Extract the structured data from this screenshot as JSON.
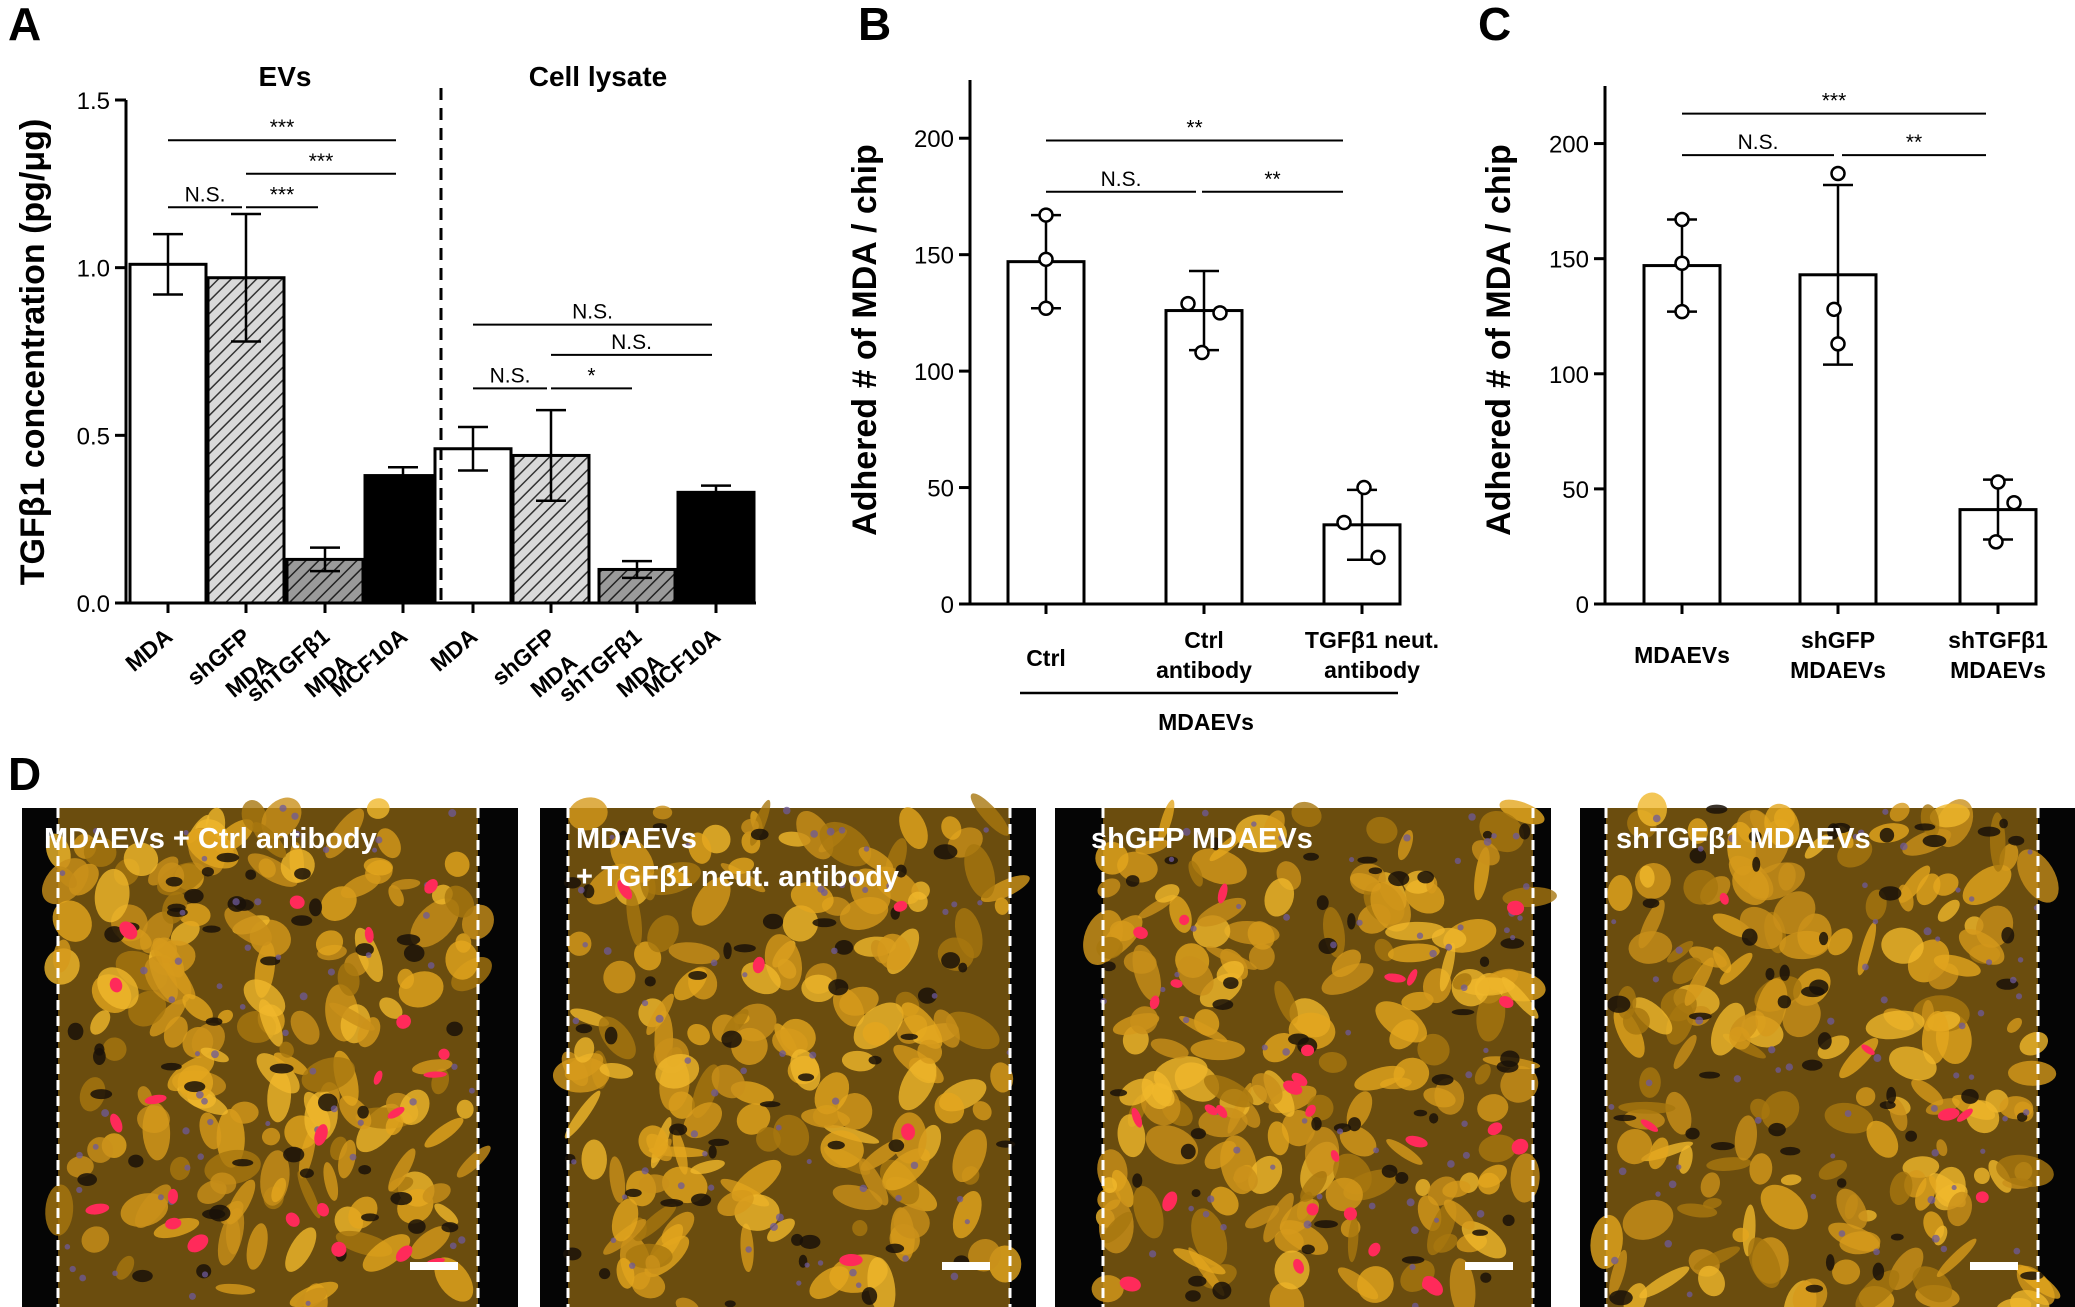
{
  "figure": {
    "panel_letters": {
      "a": "A",
      "b": "B",
      "c": "C",
      "d": "D"
    }
  },
  "chart_data": [
    {
      "panel": "A",
      "type": "bar",
      "ylabel": "TGFβ1 concentration (pg/μg)",
      "ylim": [
        0,
        1.5
      ],
      "yticks": [
        "0.0",
        "0.5",
        "1.0",
        "1.5"
      ],
      "groups": [
        "EVs",
        "Cell lysate"
      ],
      "categories": [
        {
          "lines": [
            "MDA"
          ],
          "group": "EVs"
        },
        {
          "lines": [
            "shGFP",
            "MDA"
          ],
          "group": "EVs"
        },
        {
          "lines": [
            "shTGFβ1",
            "MDA"
          ],
          "group": "EVs"
        },
        {
          "lines": [
            "MCF10A"
          ],
          "group": "EVs"
        },
        {
          "lines": [
            "MDA"
          ],
          "group": "Cell lysate"
        },
        {
          "lines": [
            "shGFP",
            "MDA"
          ],
          "group": "Cell lysate"
        },
        {
          "lines": [
            "shTGFβ1",
            "MDA"
          ],
          "group": "Cell lysate"
        },
        {
          "lines": [
            "MCF10A"
          ],
          "group": "Cell lysate"
        }
      ],
      "values": [
        1.01,
        0.97,
        0.13,
        0.38,
        0.46,
        0.44,
        0.1,
        0.33
      ],
      "error": [
        0.09,
        0.19,
        0.035,
        0.025,
        0.065,
        0.135,
        0.025,
        0.02
      ],
      "fill": [
        "white",
        "hatch-light",
        "hatch-dark",
        "black",
        "white",
        "hatch-light",
        "hatch-dark",
        "black"
      ],
      "significance": [
        {
          "from": 0,
          "to": 2,
          "y": 1.18,
          "label": "N.S."
        },
        {
          "from": 1,
          "to": 2,
          "y": 1.18,
          "label": "***"
        },
        {
          "from": 2,
          "to": 3,
          "y": 1.28,
          "label": "***"
        },
        {
          "from": 1,
          "to": 3,
          "y": 1.38,
          "label": "***"
        },
        {
          "from": 4,
          "to": 5,
          "y": 0.64,
          "label": "N.S."
        },
        {
          "from": 5,
          "to": 6,
          "y": 0.64,
          "label": "*"
        },
        {
          "from": 5,
          "to": 7,
          "y": 0.74,
          "label": "N.S."
        },
        {
          "from": 4,
          "to": 7,
          "y": 0.83,
          "label": "N.S."
        }
      ]
    },
    {
      "panel": "B",
      "type": "bar",
      "ylabel": "Adhered # of MDA / chip",
      "ylim": [
        0,
        225
      ],
      "yticks": [
        "0",
        "50",
        "100",
        "150",
        "200"
      ],
      "categories": [
        {
          "lines": [
            "Ctrl"
          ]
        },
        {
          "lines": [
            "Ctrl",
            "antibody"
          ]
        },
        {
          "lines": [
            "TGFβ1 neut.",
            "antibody"
          ]
        }
      ],
      "group_label": "MDAEVs",
      "values": [
        147,
        126,
        34
      ],
      "error": [
        20,
        17,
        15
      ],
      "points": [
        [
          167,
          148,
          127
        ],
        [
          129,
          125,
          108
        ],
        [
          50,
          35,
          20
        ]
      ],
      "significance": [
        {
          "from": 0,
          "to": 1,
          "y": 177,
          "label": "N.S."
        },
        {
          "from": 1,
          "to": 2,
          "y": 177,
          "label": "**"
        },
        {
          "from": 0,
          "to": 2,
          "y": 199,
          "label": "**"
        }
      ]
    },
    {
      "panel": "C",
      "type": "bar",
      "ylabel": "Adhered # of MDA / chip",
      "ylim": [
        0,
        225
      ],
      "yticks": [
        "0",
        "50",
        "100",
        "150",
        "200"
      ],
      "categories": [
        {
          "lines": [
            "MDAEVs"
          ]
        },
        {
          "lines": [
            "shGFP",
            "MDAEVs"
          ]
        },
        {
          "lines": [
            "shTGFβ1",
            "MDAEVs"
          ]
        }
      ],
      "values": [
        147,
        143,
        41
      ],
      "error": [
        20,
        39,
        13
      ],
      "points": [
        [
          167,
          148,
          127
        ],
        [
          187,
          128,
          113
        ],
        [
          53,
          44,
          27
        ]
      ],
      "significance": [
        {
          "from": 0,
          "to": 1,
          "y": 195,
          "label": "N.S."
        },
        {
          "from": 1,
          "to": 2,
          "y": 195,
          "label": "**"
        },
        {
          "from": 0,
          "to": 2,
          "y": 213,
          "label": "***"
        }
      ]
    }
  ],
  "micrographs": [
    {
      "label_lines": [
        "MDAEVs + Ctrl antibody"
      ],
      "red_cells": 22
    },
    {
      "label_lines": [
        "MDAEVs",
        "+ TGFβ1 neut. antibody"
      ],
      "red_cells": 5
    },
    {
      "label_lines": [
        "shGFP MDAEVs"
      ],
      "red_cells": 28
    },
    {
      "label_lines": [
        "shTGFβ1 MDAEVs"
      ],
      "red_cells": 6
    }
  ]
}
